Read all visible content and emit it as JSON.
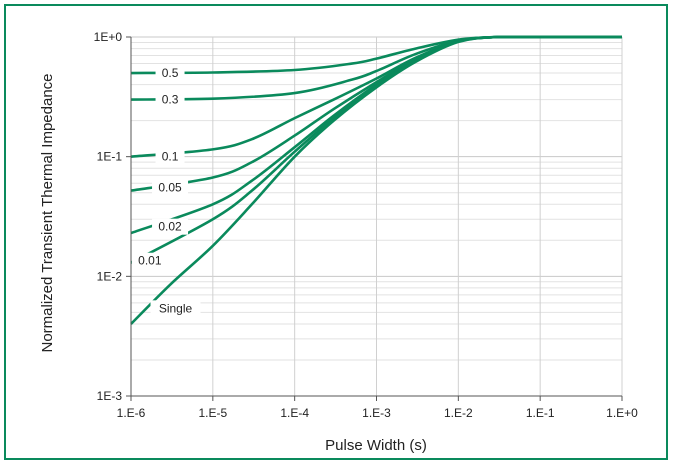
{
  "chart_data": {
    "type": "line",
    "title": "",
    "xlabel": "Pulse Width (s)",
    "ylabel": "Normalized  Transient Thermal Impedance",
    "x_scale": "log",
    "y_scale": "log",
    "xlim": [
      1e-06,
      1
    ],
    "ylim": [
      0.001,
      1
    ],
    "grid": true,
    "x_ticks": [
      {
        "value": 1e-06,
        "label": "1.E-6"
      },
      {
        "value": 1e-05,
        "label": "1.E-5"
      },
      {
        "value": 0.0001,
        "label": "1.E-4"
      },
      {
        "value": 0.001,
        "label": "1.E-3"
      },
      {
        "value": 0.01,
        "label": "1.E-2"
      },
      {
        "value": 0.1,
        "label": "1.E-1"
      },
      {
        "value": 1,
        "label": "1.E+0"
      }
    ],
    "y_ticks": [
      {
        "value": 1,
        "label": "1E+0"
      },
      {
        "value": 0.1,
        "label": "1E-1"
      },
      {
        "value": 0.01,
        "label": "1E-2"
      },
      {
        "value": 0.001,
        "label": "1E-3"
      }
    ],
    "line_color": "#0a8a5c",
    "series": [
      {
        "name": "0.5",
        "x": [
          1e-06,
          1e-05,
          0.0001,
          0.0005,
          0.001,
          0.003,
          0.01,
          0.03,
          0.1,
          1
        ],
        "y": [
          0.5,
          0.505,
          0.53,
          0.6,
          0.66,
          0.8,
          0.95,
          1.0,
          1.0,
          1.0
        ],
        "label_at": [
          3e-06,
          0.5
        ]
      },
      {
        "name": "0.3",
        "x": [
          1e-06,
          1e-05,
          0.0001,
          0.0005,
          0.001,
          0.003,
          0.01,
          0.03,
          0.1,
          1
        ],
        "y": [
          0.3,
          0.305,
          0.34,
          0.44,
          0.52,
          0.72,
          0.93,
          1.0,
          1.0,
          1.0
        ],
        "label_at": [
          3e-06,
          0.3
        ]
      },
      {
        "name": "0.1",
        "x": [
          1e-06,
          1e-05,
          3e-05,
          0.0001,
          0.0003,
          0.001,
          0.003,
          0.01,
          0.03,
          0.1,
          1
        ],
        "y": [
          0.1,
          0.115,
          0.14,
          0.21,
          0.3,
          0.45,
          0.67,
          0.92,
          1.0,
          1.0,
          1.0
        ],
        "label_at": [
          3e-06,
          0.1
        ]
      },
      {
        "name": "0.05",
        "x": [
          1e-06,
          1e-05,
          3e-05,
          0.0001,
          0.0003,
          0.001,
          0.003,
          0.01,
          0.03,
          0.1,
          1
        ],
        "y": [
          0.052,
          0.067,
          0.09,
          0.15,
          0.25,
          0.42,
          0.65,
          0.92,
          1.0,
          1.0,
          1.0
        ],
        "label_at": [
          3e-06,
          0.055
        ]
      },
      {
        "name": "0.02",
        "x": [
          1e-06,
          1e-05,
          3e-05,
          0.0001,
          0.0003,
          0.001,
          0.003,
          0.01,
          0.03,
          0.1,
          1
        ],
        "y": [
          0.023,
          0.04,
          0.063,
          0.12,
          0.22,
          0.4,
          0.64,
          0.92,
          1.0,
          1.0,
          1.0
        ],
        "label_at": [
          3e-06,
          0.026
        ]
      },
      {
        "name": "0.01",
        "x": [
          1e-06,
          1e-05,
          3e-05,
          0.0001,
          0.0003,
          0.001,
          0.003,
          0.01,
          0.03,
          0.1,
          1
        ],
        "y": [
          0.013,
          0.03,
          0.052,
          0.11,
          0.21,
          0.39,
          0.63,
          0.92,
          1.0,
          1.0,
          1.0
        ],
        "label_at": [
          1.7e-06,
          0.0135
        ]
      },
      {
        "name": "Single",
        "x": [
          1e-06,
          3e-06,
          1e-05,
          3e-05,
          0.0001,
          0.0003,
          0.001,
          0.003,
          0.01,
          0.03,
          0.1,
          1
        ],
        "y": [
          0.004,
          0.0085,
          0.018,
          0.04,
          0.1,
          0.2,
          0.38,
          0.62,
          0.91,
          1.0,
          1.0,
          1.0
        ],
        "label_at": [
          3.5e-06,
          0.0054
        ]
      }
    ]
  }
}
